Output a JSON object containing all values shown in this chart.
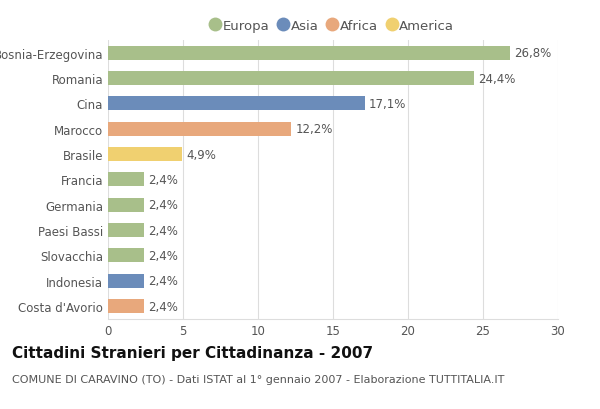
{
  "categories": [
    "Costa d'Avorio",
    "Indonesia",
    "Slovacchia",
    "Paesi Bassi",
    "Germania",
    "Francia",
    "Brasile",
    "Marocco",
    "Cina",
    "Romania",
    "Bosnia-Erzegovina"
  ],
  "values": [
    2.4,
    2.4,
    2.4,
    2.4,
    2.4,
    2.4,
    4.9,
    12.2,
    17.1,
    24.4,
    26.8
  ],
  "labels": [
    "2,4%",
    "2,4%",
    "2,4%",
    "2,4%",
    "2,4%",
    "2,4%",
    "4,9%",
    "12,2%",
    "17,1%",
    "24,4%",
    "26,8%"
  ],
  "colors": [
    "#e8a87c",
    "#6b8cba",
    "#a8bf8a",
    "#a8bf8a",
    "#a8bf8a",
    "#a8bf8a",
    "#f0d070",
    "#e8a87c",
    "#6b8cba",
    "#a8bf8a",
    "#a8bf8a"
  ],
  "legend": [
    {
      "label": "Europa",
      "color": "#a8bf8a"
    },
    {
      "label": "Asia",
      "color": "#6b8cba"
    },
    {
      "label": "Africa",
      "color": "#e8a87c"
    },
    {
      "label": "America",
      "color": "#f0d070"
    }
  ],
  "title": "Cittadini Stranieri per Cittadinanza - 2007",
  "subtitle": "COMUNE DI CARAVINO (TO) - Dati ISTAT al 1° gennaio 2007 - Elaborazione TUTTITALIA.IT",
  "xlim": [
    0,
    30
  ],
  "xticks": [
    0,
    5,
    10,
    15,
    20,
    25,
    30
  ],
  "background_color": "#ffffff",
  "grid_color": "#dddddd",
  "bar_height": 0.55,
  "title_fontsize": 11,
  "subtitle_fontsize": 8,
  "label_fontsize": 8.5,
  "tick_fontsize": 8.5,
  "legend_fontsize": 9.5
}
